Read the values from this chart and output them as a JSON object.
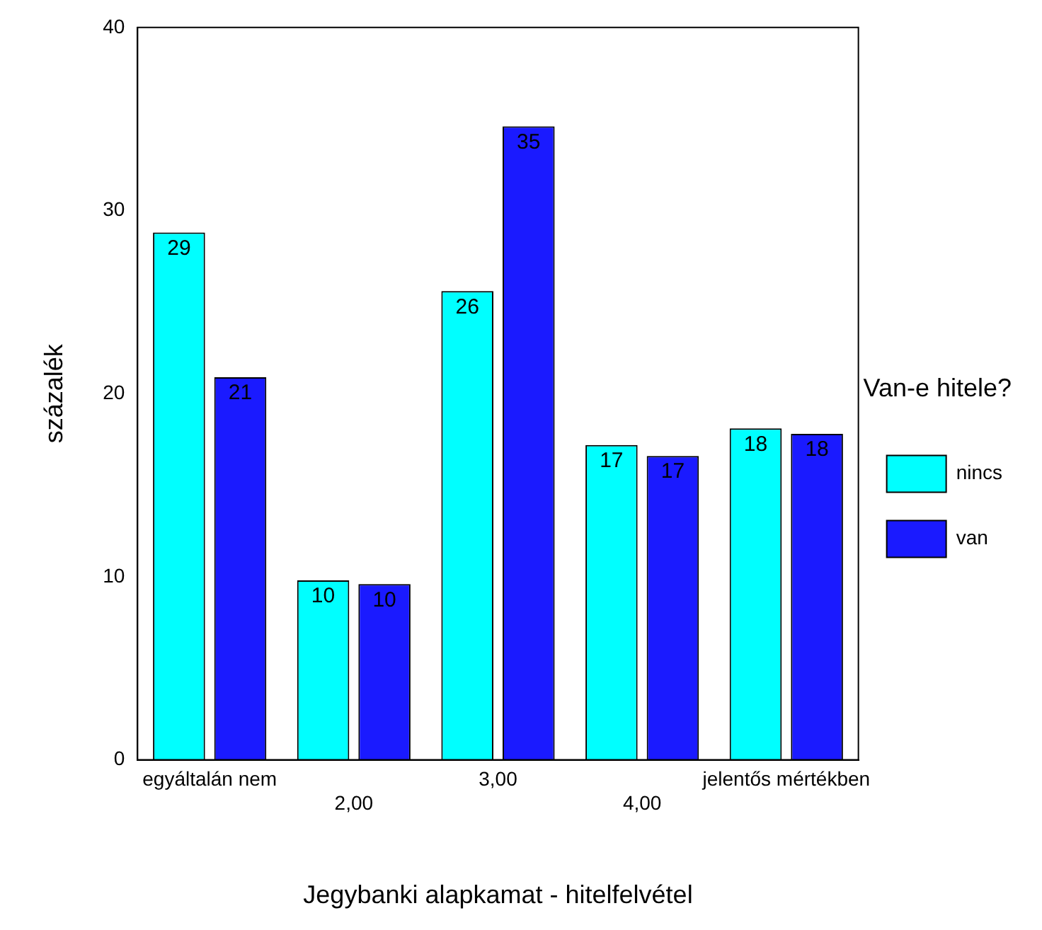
{
  "chart_data": {
    "type": "bar",
    "xlabel": "Jegybanki alapkamat - hitelfelvétel",
    "ylabel": "százalék",
    "legend_title": "Van-e hitele?",
    "categories": [
      "egyáltalán nem",
      "2,00",
      "3,00",
      "4,00",
      "jelentős mértékben"
    ],
    "series": [
      {
        "name": "nincs",
        "color": "#00ffff",
        "values": [
          28.8,
          9.8,
          25.6,
          17.2,
          18.1
        ],
        "value_labels": [
          "29",
          "10",
          "26",
          "17",
          "18"
        ]
      },
      {
        "name": "van",
        "color": "#1a1aff",
        "values": [
          20.9,
          9.6,
          34.6,
          16.6,
          17.8
        ],
        "value_labels": [
          "21",
          "10",
          "35",
          "17",
          "18"
        ]
      }
    ],
    "ylim": [
      0,
      40
    ],
    "yticks": [
      0,
      10,
      20,
      30,
      40
    ],
    "grid": false,
    "legend": "right"
  }
}
